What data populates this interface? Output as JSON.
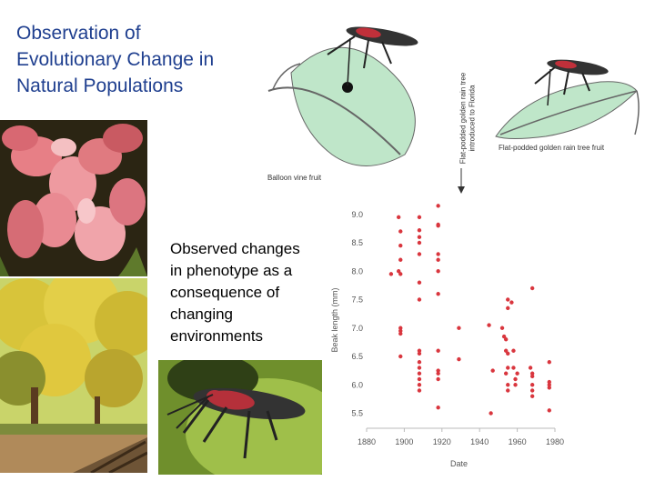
{
  "slide": {
    "title": "Observation of\nEvolutionary Change in\nNatural Populations",
    "caption": "Observed changes\nin phenotype as a\nconsequence of\nchanging\nenvironments"
  },
  "figure": {
    "balloon_label": "Balloon vine fruit",
    "flat_label": "Flat-podded golden rain tree fruit",
    "introduced_label": "Flat-podded golden rain tree\nintroduced to Florida"
  },
  "chart_data": {
    "type": "scatter",
    "xlabel": "Date",
    "ylabel": "Beak length (mm)",
    "xlim": [
      1880,
      1980
    ],
    "ylim": [
      5.3,
      9.3
    ],
    "x_ticks": [
      1880,
      1900,
      1920,
      1940,
      1960,
      1980
    ],
    "y_ticks": [
      5.5,
      6.0,
      6.5,
      7.0,
      7.5,
      8.0,
      8.5,
      9.0
    ],
    "x_tick_labels": [
      "1880",
      "1900",
      "1920",
      "1940",
      "1960",
      "1980"
    ],
    "y_tick_labels": [
      "5.5",
      "6.0",
      "6.5",
      "7.0",
      "7.5",
      "8.0",
      "8.5",
      "9.0"
    ],
    "point_color": "#d9363e",
    "points": [
      [
        1897,
        8.95
      ],
      [
        1898,
        8.7
      ],
      [
        1898,
        8.45
      ],
      [
        1898,
        8.2
      ],
      [
        1897,
        8.0
      ],
      [
        1893,
        7.95
      ],
      [
        1898,
        7.95
      ],
      [
        1898,
        7.0
      ],
      [
        1898,
        6.95
      ],
      [
        1898,
        6.9
      ],
      [
        1898,
        6.5
      ],
      [
        1908,
        8.95
      ],
      [
        1908,
        8.72
      ],
      [
        1908,
        8.6
      ],
      [
        1908,
        8.5
      ],
      [
        1908,
        8.3
      ],
      [
        1908,
        7.8
      ],
      [
        1908,
        7.5
      ],
      [
        1908,
        6.6
      ],
      [
        1908,
        6.55
      ],
      [
        1908,
        6.4
      ],
      [
        1908,
        6.3
      ],
      [
        1908,
        6.2
      ],
      [
        1908,
        6.1
      ],
      [
        1908,
        6.0
      ],
      [
        1908,
        5.9
      ],
      [
        1918,
        9.15
      ],
      [
        1918,
        8.82
      ],
      [
        1918,
        8.8
      ],
      [
        1918,
        8.3
      ],
      [
        1918,
        8.2
      ],
      [
        1918,
        8.0
      ],
      [
        1918,
        7.6
      ],
      [
        1918,
        6.6
      ],
      [
        1918,
        6.25
      ],
      [
        1918,
        6.2
      ],
      [
        1918,
        6.1
      ],
      [
        1918,
        5.6
      ],
      [
        1929,
        7.0
      ],
      [
        1929,
        6.45
      ],
      [
        1945,
        7.05
      ],
      [
        1947,
        6.25
      ],
      [
        1946,
        5.5
      ],
      [
        1952,
        7.0
      ],
      [
        1953,
        6.85
      ],
      [
        1954,
        6.8
      ],
      [
        1954,
        6.6
      ],
      [
        1955,
        6.55
      ],
      [
        1955,
        6.3
      ],
      [
        1954,
        6.2
      ],
      [
        1955,
        6.0
      ],
      [
        1955,
        5.9
      ],
      [
        1955,
        7.5
      ],
      [
        1955,
        7.35
      ],
      [
        1957,
        7.45
      ],
      [
        1958,
        6.6
      ],
      [
        1958,
        6.3
      ],
      [
        1959,
        6.1
      ],
      [
        1959,
        6.0
      ],
      [
        1960,
        6.2
      ],
      [
        1968,
        7.7
      ],
      [
        1967,
        6.3
      ],
      [
        1968,
        6.2
      ],
      [
        1968,
        6.15
      ],
      [
        1968,
        6.0
      ],
      [
        1968,
        5.9
      ],
      [
        1968,
        5.8
      ],
      [
        1977,
        6.4
      ],
      [
        1977,
        6.05
      ],
      [
        1977,
        6.0
      ],
      [
        1977,
        5.95
      ],
      [
        1977,
        5.55
      ]
    ]
  },
  "colors": {
    "title": "#1f3f8f",
    "fruit_fill": "#bfe6c9",
    "bug_body": "#3a3a3a",
    "bug_accent": "#c0303a"
  }
}
